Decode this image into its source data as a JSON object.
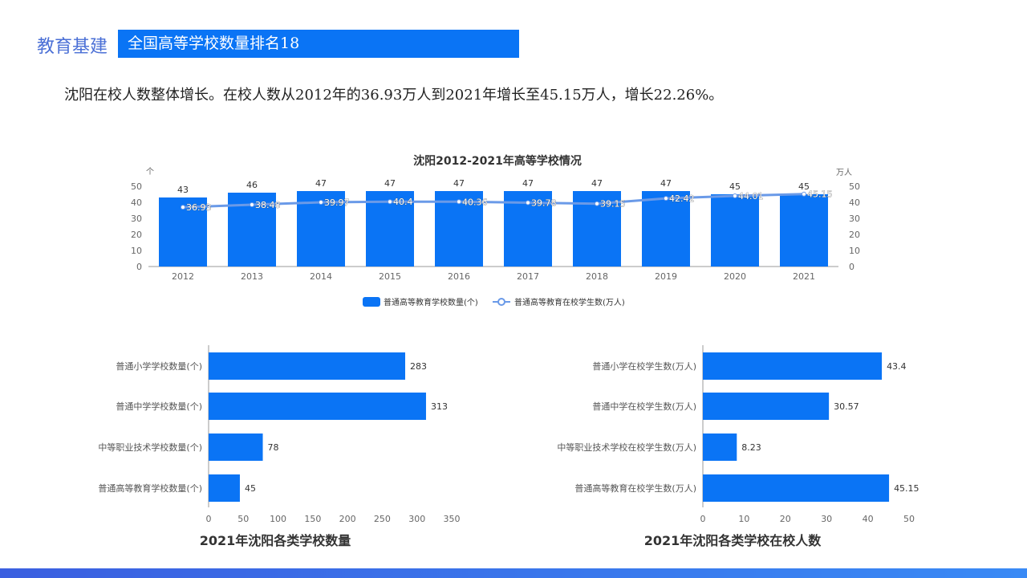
{
  "header": {
    "section": "教育基建",
    "banner": "全国高等学校数量排名18"
  },
  "description": "沈阳在校人数整体增长。在校人数从2012年的36.93万人到2021年增长至45.15万人，增长22.26%。",
  "colors": {
    "bar": "#0a74f5",
    "line": "#6a9ae8"
  },
  "chart_data": [
    {
      "type": "bar+line",
      "title": "沈阳2012-2021年高等学校情况",
      "categories": [
        "2012",
        "2013",
        "2014",
        "2015",
        "2016",
        "2017",
        "2018",
        "2019",
        "2020",
        "2021"
      ],
      "left_unit": "个",
      "right_unit": "万人",
      "ylim": [
        0,
        50
      ],
      "yticks": [
        0,
        10,
        20,
        30,
        40,
        50
      ],
      "series": [
        {
          "name": "普通高等教育学校数量(个)",
          "type": "bar",
          "values": [
            43,
            46,
            47,
            47,
            47,
            47,
            47,
            47,
            45,
            45
          ]
        },
        {
          "name": "普通高等教育在校学生数(万人)",
          "type": "line",
          "values": [
            36.93,
            38.48,
            39.97,
            40.4,
            40.36,
            39.78,
            39.15,
            42.42,
            44.01,
            45.15
          ]
        }
      ],
      "legend": "bottom"
    },
    {
      "type": "bar",
      "orientation": "horizontal",
      "title": "2021年沈阳各类学校数量",
      "categories": [
        "普通小学学校数量(个)",
        "普通中学学校数量(个)",
        "中等职业技术学校数量(个)",
        "普通高等教育学校数量(个)"
      ],
      "values": [
        283,
        313,
        78,
        45
      ],
      "xlim": [
        0,
        350
      ],
      "xticks": [
        0,
        50,
        100,
        150,
        200,
        250,
        300,
        350
      ]
    },
    {
      "type": "bar",
      "orientation": "horizontal",
      "title": "2021年沈阳各类学校在校人数",
      "categories": [
        "普通小学在校学生数(万人)",
        "普通中学在校学生数(万人)",
        "中等职业技术学校在校学生数(万人)",
        "普通高等教育在校学生数(万人)"
      ],
      "values": [
        43.4,
        30.57,
        8.23,
        45.15
      ],
      "xlim": [
        0,
        50
      ],
      "xticks": [
        0,
        10,
        20,
        30,
        40,
        50
      ]
    }
  ]
}
